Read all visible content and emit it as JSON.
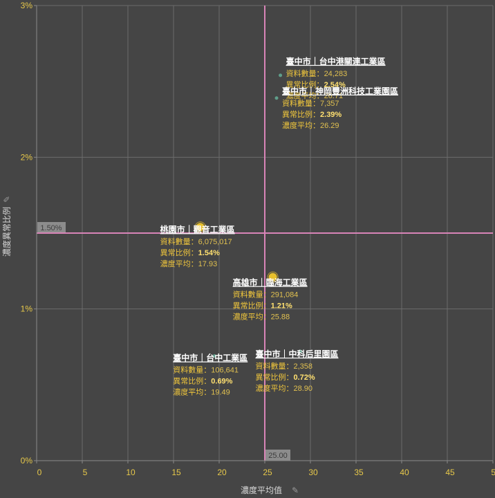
{
  "chart_data": {
    "type": "scatter",
    "xlabel": "濃度平均值",
    "ylabel": "濃度異常比例",
    "xlim": [
      0,
      50
    ],
    "ylim": [
      0,
      3
    ],
    "xticks": [
      "0",
      "5",
      "10",
      "15",
      "20",
      "25",
      "30",
      "35",
      "40",
      "45",
      "50"
    ],
    "yticks": [
      {
        "value": 0,
        "label": "0%"
      },
      {
        "value": 1,
        "label": "1%"
      },
      {
        "value": 2,
        "label": "2%"
      },
      {
        "value": 3,
        "label": "3%"
      }
    ],
    "grid": true,
    "ref_x": {
      "value": 25,
      "label": "25.00"
    },
    "ref_y": {
      "value": 1.5,
      "label": "1.50%"
    },
    "field_labels": {
      "count": "資料數量：",
      "ratio": "異常比例：",
      "avg": "濃度平均："
    },
    "colors": {
      "point": "#e8c02c",
      "point_small": "#5f9e8a",
      "ref_line": "#d985b8",
      "tick": "#e8c94a"
    },
    "points": [
      {
        "name": "臺中市｜台中港關連工業區",
        "x": 26.71,
        "y": 2.54,
        "count": "24,283",
        "ratio": "2.54%",
        "avg": "26.71",
        "size": "small"
      },
      {
        "name": "臺中市｜神岡豐洲科技工業園區",
        "x": 26.29,
        "y": 2.39,
        "count": "7,357",
        "ratio": "2.39%",
        "avg": "26.29",
        "size": "small"
      },
      {
        "name": "桃園市｜觀音工業區",
        "x": 17.93,
        "y": 1.54,
        "count": "6,075,017",
        "ratio": "1.54%",
        "avg": "17.93",
        "size": "large"
      },
      {
        "name": "高雄市｜臨海工業區",
        "x": 25.88,
        "y": 1.21,
        "count": "291,084",
        "ratio": "1.21%",
        "avg": "25.88",
        "size": "medium"
      },
      {
        "name": "臺中市｜台中工業區",
        "x": 19.49,
        "y": 0.69,
        "count": "106,641",
        "ratio": "0.69%",
        "avg": "19.49",
        "size": "small"
      },
      {
        "name": "臺中市｜中科后里園區",
        "x": 28.9,
        "y": 0.72,
        "count": "2,358",
        "ratio": "0.72%",
        "avg": "28.90",
        "size": "small"
      }
    ]
  }
}
